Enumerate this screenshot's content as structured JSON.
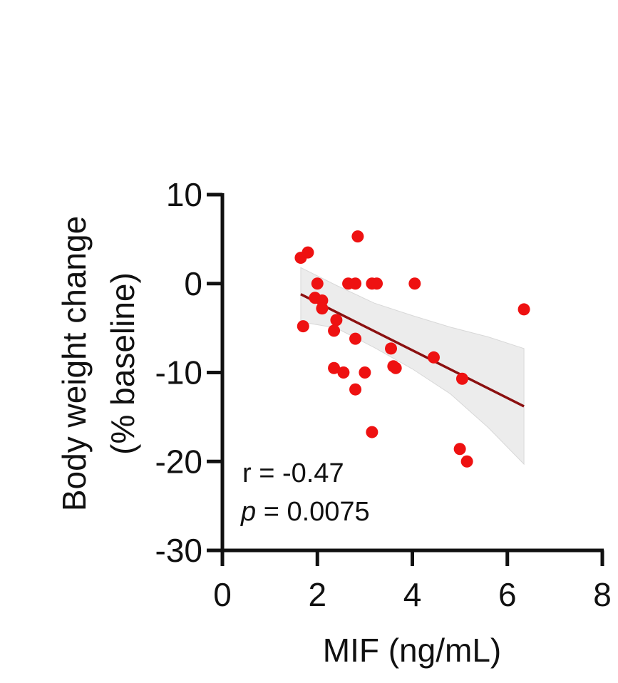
{
  "chart_data": {
    "type": "scatter",
    "xlabel": "MIF (ng/mL)",
    "ylabel_line1": "Body weight change",
    "ylabel_line2": "(% baseline)",
    "xlim": [
      0,
      8
    ],
    "ylim": [
      -30,
      10
    ],
    "x_ticks": [
      "0",
      "2",
      "4",
      "6",
      "8"
    ],
    "y_ticks": [
      "10",
      "0",
      "-10",
      "-20",
      "-30"
    ],
    "points": [
      {
        "x": 1.65,
        "y": 2.9
      },
      {
        "x": 1.8,
        "y": 3.5
      },
      {
        "x": 1.7,
        "y": -4.8
      },
      {
        "x": 1.95,
        "y": -1.6
      },
      {
        "x": 2.0,
        "y": 0.0
      },
      {
        "x": 2.1,
        "y": -1.9
      },
      {
        "x": 2.1,
        "y": -2.8
      },
      {
        "x": 2.4,
        "y": -4.1
      },
      {
        "x": 2.35,
        "y": -5.3
      },
      {
        "x": 2.35,
        "y": -9.5
      },
      {
        "x": 2.55,
        "y": -10.0
      },
      {
        "x": 2.65,
        "y": 0.0
      },
      {
        "x": 2.8,
        "y": 0.0
      },
      {
        "x": 2.85,
        "y": 5.3
      },
      {
        "x": 2.8,
        "y": -6.2
      },
      {
        "x": 2.8,
        "y": -11.9
      },
      {
        "x": 3.0,
        "y": -10.0
      },
      {
        "x": 3.15,
        "y": 0.0
      },
      {
        "x": 3.25,
        "y": 0.0
      },
      {
        "x": 3.15,
        "y": -16.7
      },
      {
        "x": 3.55,
        "y": -7.3
      },
      {
        "x": 3.6,
        "y": -9.3
      },
      {
        "x": 3.65,
        "y": -9.5
      },
      {
        "x": 4.05,
        "y": 0.0
      },
      {
        "x": 4.45,
        "y": -8.3
      },
      {
        "x": 5.0,
        "y": -18.6
      },
      {
        "x": 5.05,
        "y": -10.7
      },
      {
        "x": 5.15,
        "y": -20.0
      },
      {
        "x": 6.35,
        "y": -2.9
      }
    ],
    "regression": {
      "x": [
        1.65,
        6.35
      ],
      "y": [
        -1.2,
        -13.8
      ]
    },
    "confidence_band": {
      "x": [
        1.65,
        2.4,
        3.2,
        4.0,
        4.8,
        5.6,
        6.35
      ],
      "upper": [
        1.8,
        -0.2,
        -2.2,
        -3.6,
        -4.9,
        -6.0,
        -7.3
      ],
      "lower": [
        -4.3,
        -5.0,
        -7.2,
        -9.6,
        -12.4,
        -16.2,
        -20.3
      ]
    },
    "annotation": {
      "r_text": "r = -0.47",
      "p_label": "p",
      "p_value_text": " = 0.0075"
    },
    "colors": {
      "points": "#ee1111",
      "line": "#8b1010",
      "band": "#ececec",
      "axis": "#111111"
    }
  }
}
